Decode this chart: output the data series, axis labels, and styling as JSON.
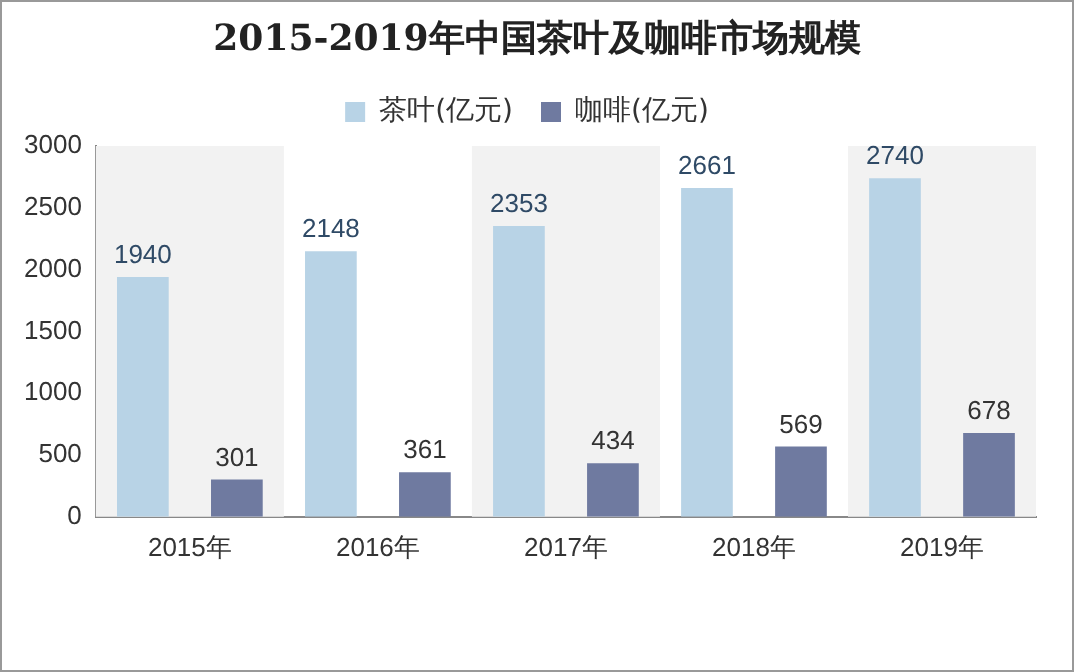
{
  "chart_data": {
    "type": "bar",
    "title": "2015-2019年中国茶叶及咖啡市场规模",
    "categories": [
      "2015年",
      "2016年",
      "2017年",
      "2018年",
      "2019年"
    ],
    "series": [
      {
        "name": "茶叶(亿元)",
        "color": "#b8d3e6",
        "values": [
          1940,
          2148,
          2353,
          2661,
          2740
        ]
      },
      {
        "name": "咖啡(亿元)",
        "color": "#6f7aa0",
        "values": [
          301,
          361,
          434,
          569,
          678
        ]
      }
    ],
    "ylim": [
      0,
      3000
    ],
    "yticks": [
      0,
      500,
      1000,
      1500,
      2000,
      2500,
      3000
    ],
    "grid": false,
    "legend": "top",
    "data_labels": true,
    "bands": [
      {
        "axis": "x",
        "from": "2015年",
        "to": "2015年",
        "color": "#f2f2f2"
      },
      {
        "axis": "x",
        "from": "2017年",
        "to": "2017年",
        "color": "#f2f2f2"
      },
      {
        "axis": "x",
        "from": "2019年",
        "to": "2019年",
        "color": "#f2f2f2"
      }
    ]
  }
}
